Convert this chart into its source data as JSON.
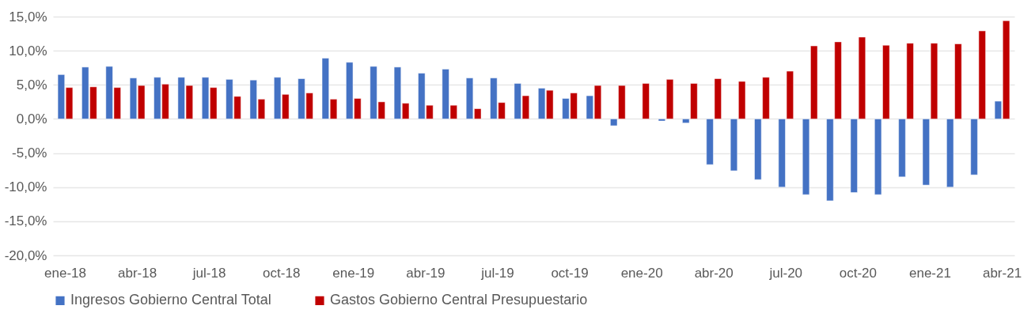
{
  "chart_data": {
    "type": "bar",
    "categories": [
      "ene-18",
      null,
      null,
      "abr-18",
      null,
      null,
      "jul-18",
      null,
      null,
      "oct-18",
      null,
      null,
      "ene-19",
      null,
      null,
      "abr-19",
      null,
      null,
      "jul-19",
      null,
      null,
      "oct-19",
      null,
      null,
      "ene-20",
      null,
      null,
      "abr-20",
      null,
      null,
      "jul-20",
      null,
      null,
      "oct-20",
      null,
      null,
      "ene-21",
      null,
      null,
      "abr-21"
    ],
    "series": [
      {
        "name": "Ingresos Gobierno Central Total",
        "color": "#4472c4",
        "values": [
          6.5,
          7.6,
          7.7,
          6.0,
          6.1,
          6.1,
          6.1,
          5.8,
          5.7,
          6.1,
          5.9,
          8.9,
          8.3,
          7.7,
          7.6,
          6.7,
          7.3,
          6.0,
          6.0,
          5.2,
          4.5,
          3.0,
          3.4,
          -1.0,
          null,
          -0.3,
          -0.6,
          -6.7,
          -7.6,
          -8.9,
          -10.0,
          -11.1,
          -12.0,
          -10.8,
          -11.1,
          -8.5,
          -9.7,
          -10.0,
          -8.2,
          2.6
        ]
      },
      {
        "name": "Gastos Gobierno Central Presupuestario",
        "color": "#c00000",
        "values": [
          4.6,
          4.7,
          4.6,
          4.9,
          5.1,
          4.9,
          4.6,
          3.3,
          2.9,
          3.6,
          3.8,
          2.9,
          3.0,
          2.5,
          2.3,
          2.0,
          2.0,
          1.5,
          2.4,
          3.4,
          4.2,
          3.8,
          4.9,
          4.9,
          5.2,
          5.8,
          5.2,
          5.9,
          5.5,
          6.1,
          7.0,
          10.7,
          11.3,
          12.0,
          10.8,
          11.1,
          11.1,
          11.0,
          12.9,
          14.4
        ]
      }
    ],
    "ylim": [
      -20,
      15
    ],
    "yticks": [
      {
        "value": -20,
        "label": "-20,0%"
      },
      {
        "value": -15,
        "label": "-15,0%"
      },
      {
        "value": -10,
        "label": "-10,0%"
      },
      {
        "value": -5,
        "label": "-5,0%"
      },
      {
        "value": 0,
        "label": "0,0%"
      },
      {
        "value": 5,
        "label": "5,0%"
      },
      {
        "value": 10,
        "label": "10,0%"
      },
      {
        "value": 15,
        "label": "15,0%"
      }
    ],
    "grid": "y",
    "legend": "bottom"
  }
}
